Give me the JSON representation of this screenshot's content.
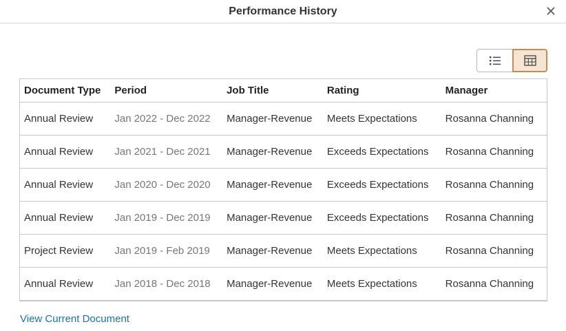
{
  "dialog": {
    "title": "Performance History",
    "close_icon": "close-icon"
  },
  "view_toggle": {
    "options": [
      {
        "icon": "list-view-icon",
        "selected": false
      },
      {
        "icon": "grid-view-icon",
        "selected": true
      }
    ],
    "selected_color": "#f7e5d3",
    "selected_border": "#c88b57"
  },
  "table": {
    "columns": [
      "Document Type",
      "Period",
      "Job Title",
      "Rating",
      "Manager"
    ],
    "rows": [
      {
        "doc_type": "Annual Review",
        "period": "Jan 2022 - Dec 2022",
        "job_title": "Manager-Revenue",
        "rating": "Meets Expectations",
        "manager": "Rosanna Channing"
      },
      {
        "doc_type": "Annual Review",
        "period": "Jan 2021 - Dec 2021",
        "job_title": "Manager-Revenue",
        "rating": "Exceeds Expectations",
        "manager": "Rosanna Channing"
      },
      {
        "doc_type": "Annual Review",
        "period": "Jan 2020 - Dec 2020",
        "job_title": "Manager-Revenue",
        "rating": "Exceeds Expectations",
        "manager": "Rosanna Channing"
      },
      {
        "doc_type": "Annual Review",
        "period": "Jan 2019 - Dec 2019",
        "job_title": "Manager-Revenue",
        "rating": "Exceeds Expectations",
        "manager": "Rosanna Channing"
      },
      {
        "doc_type": "Project Review",
        "period": "Jan 2019 - Feb 2019",
        "job_title": "Manager-Revenue",
        "rating": "Meets Expectations",
        "manager": "Rosanna Channing"
      },
      {
        "doc_type": "Annual Review",
        "period": "Jan 2018 - Dec 2018",
        "job_title": "Manager-Revenue",
        "rating": "Meets Expectations",
        "manager": "Rosanna Channing"
      }
    ]
  },
  "footer": {
    "link_label": "View Current Document",
    "link_color": "#1f6fa8"
  }
}
